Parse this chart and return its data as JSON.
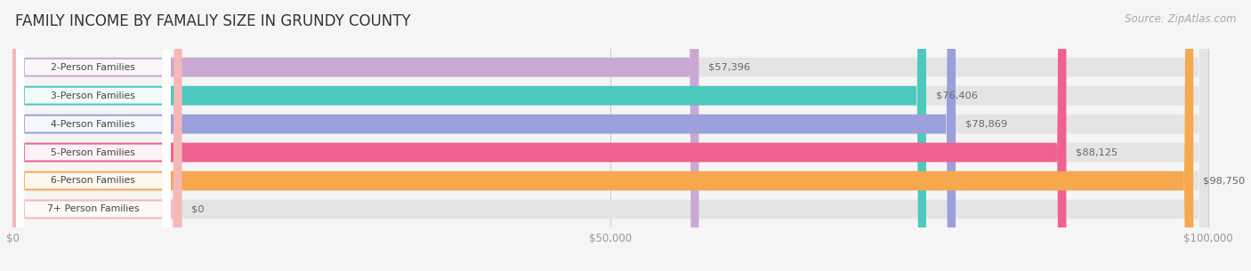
{
  "title": "FAMILY INCOME BY FAMALIY SIZE IN GRUNDY COUNTY",
  "source": "Source: ZipAtlas.com",
  "categories": [
    "2-Person Families",
    "3-Person Families",
    "4-Person Families",
    "5-Person Families",
    "6-Person Families",
    "7+ Person Families"
  ],
  "values": [
    57396,
    76406,
    78869,
    88125,
    98750,
    0
  ],
  "bar_colors": [
    "#c9a8d4",
    "#4dc8be",
    "#9b9fdb",
    "#f06090",
    "#f5a84e",
    "#f5b8b8"
  ],
  "value_labels": [
    "$57,396",
    "$76,406",
    "$78,869",
    "$88,125",
    "$98,750",
    "$0"
  ],
  "value_label_colors": [
    "#888888",
    "#ffffff",
    "#ffffff",
    "#ffffff",
    "#f5a84e",
    "#888888"
  ],
  "xlim_max": 100000,
  "xticks": [
    0,
    50000,
    100000
  ],
  "xticklabels": [
    "$0",
    "$50,000",
    "$100,000"
  ],
  "background_color": "#f5f5f5",
  "bar_background": "#e4e4e4",
  "title_fontsize": 12,
  "source_fontsize": 8.5,
  "bar_height": 0.68
}
